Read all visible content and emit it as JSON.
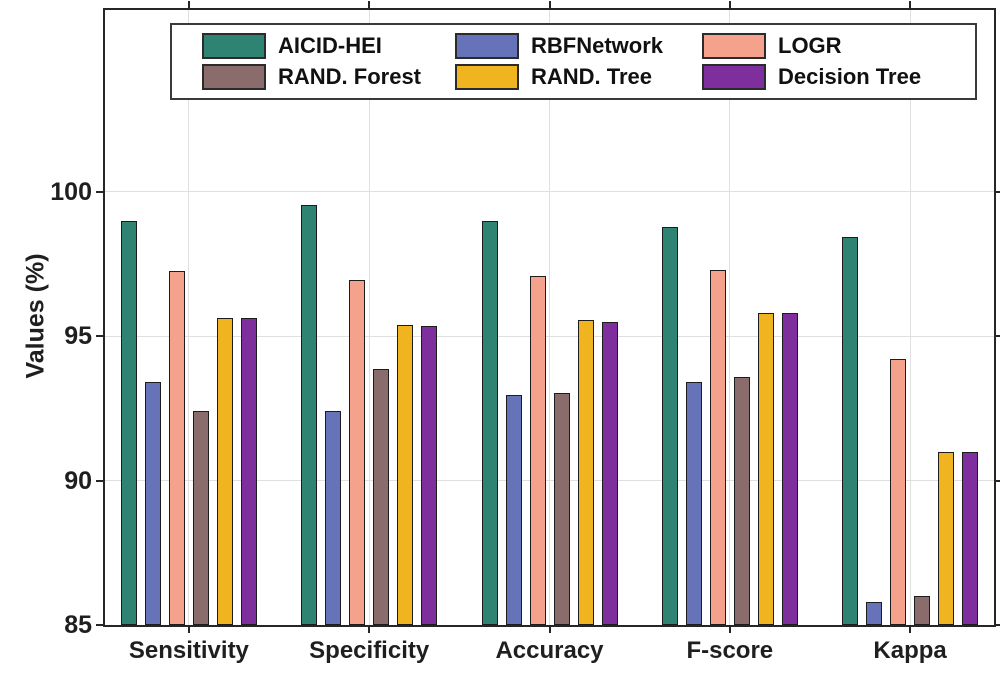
{
  "chart_data": {
    "type": "bar",
    "title": "",
    "xlabel": "",
    "ylabel": "Values (%)",
    "ylim": [
      85,
      106.3
    ],
    "yticks": [
      85,
      90,
      95,
      100
    ],
    "grid": true,
    "legend_position": "top-inside",
    "categories": [
      "Sensitivity",
      "Specificity",
      "Accuracy",
      "F-score",
      "Kappa"
    ],
    "series": [
      {
        "name": "AICID-HEI",
        "color": "#2E8372",
        "values": [
          99.0,
          99.55,
          99.0,
          98.8,
          98.45
        ]
      },
      {
        "name": "RBFNetwork",
        "color": "#6673B9",
        "values": [
          93.4,
          92.4,
          92.95,
          93.4,
          85.8
        ]
      },
      {
        "name": "LOGR",
        "color": "#F4A28C",
        "values": [
          97.25,
          96.95,
          97.1,
          97.3,
          94.2
        ]
      },
      {
        "name": "RAND. Forest",
        "color": "#8A6C6C",
        "values": [
          92.4,
          93.85,
          93.05,
          93.6,
          86.0
        ]
      },
      {
        "name": "RAND. Tree",
        "color": "#EFB41F",
        "values": [
          95.65,
          95.4,
          95.55,
          95.8,
          91.0
        ]
      },
      {
        "name": "Decision Tree",
        "color": "#7E2F9D",
        "values": [
          95.65,
          95.35,
          95.5,
          95.8,
          91.0
        ]
      }
    ],
    "style": {
      "axis_color": "#262626",
      "grid_color": "#e0e0e0",
      "bar_edge_color": "#1c1c1c",
      "text_color": "#1f1f1f"
    }
  }
}
